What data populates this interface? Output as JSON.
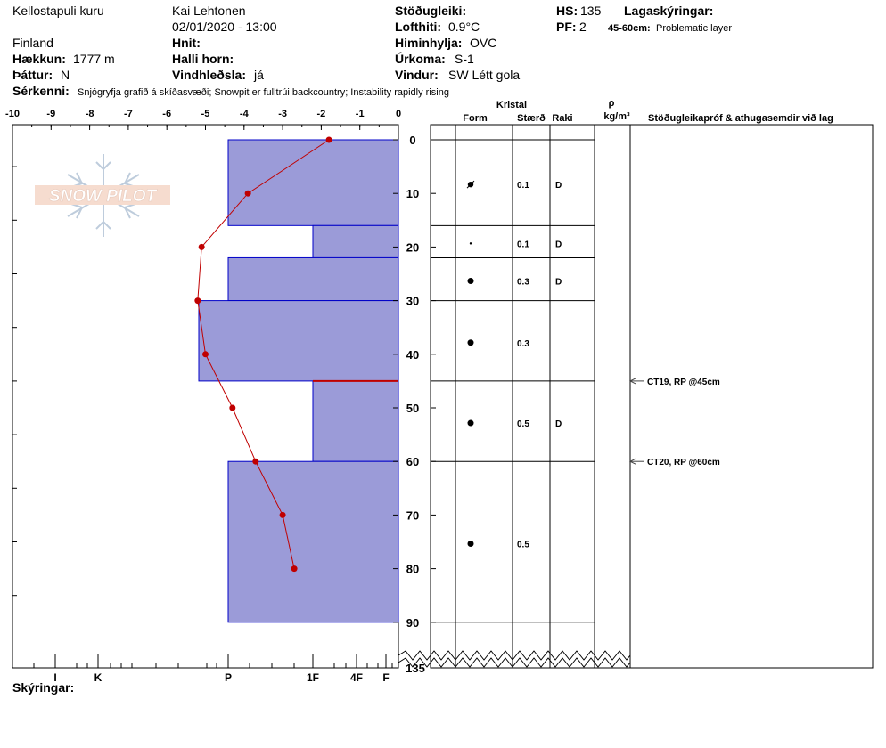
{
  "header": {
    "location": "Kellostapuli kuru",
    "country": "Finland",
    "elevation_label": "Hækkun:",
    "elevation_value": "1777 m",
    "aspect_label": "Þáttur:",
    "aspect_value": "N",
    "observer": "Kai Lehtonen",
    "datetime": "02/01/2020 - 13:00",
    "coords_label": "Hnit:",
    "slope_label": "Halli horn:",
    "wind_loading_label": "Vindhleðsla:",
    "wind_loading_value": "já",
    "stability_label": "Stöðugleiki:",
    "air_temp_label": "Lofthiti:",
    "air_temp_value": "0.9°C",
    "sky_label": "Himinhylja:",
    "sky_value": "OVC",
    "precip_label": "Úrkoma:",
    "precip_value": "S-1",
    "wind_label": "Vindur:",
    "wind_value": "SW  Létt gola",
    "hs_label": "HS:",
    "hs_value": "135",
    "pf_label": "PF:",
    "pf_value": "2",
    "layer_notes_label": "Lagaskýringar:",
    "layer_note_depth": "45-60cm:",
    "layer_note_text": "Problematic layer",
    "features_label": "Sérkenni:",
    "features_text": "Snjógryfja grafið á skíðasvæði;  Snowpit er fulltrúi backcountry;  Instability rapidly rising"
  },
  "columns": {
    "crystal": "Kristal",
    "form": "Form",
    "size": "Stærð",
    "moisture": "Raki",
    "rho": "ρ",
    "density_unit": "kg/m³",
    "tests": "Stöðugleikapróf & athugasemdir við lag"
  },
  "footer": {
    "notes_label": "Skýringar:"
  },
  "logo_text": "SNOW PILOT",
  "colors": {
    "layer_fill": "#9b9bd8",
    "layer_stroke": "#0000c8",
    "temp_line": "#c00000",
    "problem_line": "#c00000"
  },
  "chart_data": {
    "type": "snow_profile",
    "temp_axis": {
      "ticks": [
        "-10",
        "-9",
        "-8",
        "-7",
        "-6",
        "-5",
        "-4",
        "-3",
        "-2",
        "-1",
        "0"
      ],
      "min": -10,
      "max": 0
    },
    "depth_axis": {
      "ticks": [
        "0",
        "10",
        "20",
        "30",
        "40",
        "50",
        "60",
        "70",
        "80",
        "90"
      ],
      "bottom_label": "135",
      "min": 0,
      "max": 135
    },
    "hardness_ticks": [
      "I",
      "K",
      "P",
      "1F",
      "4F",
      "F"
    ],
    "layers": [
      {
        "top": 0,
        "bottom": 16,
        "hardness": "P",
        "form": "graupel",
        "size": "0.1",
        "moisture": "D"
      },
      {
        "top": 16,
        "bottom": 22,
        "hardness": "1F",
        "form": "dot",
        "size": "0.1",
        "moisture": "D"
      },
      {
        "top": 22,
        "bottom": 30,
        "hardness": "P",
        "form": "rounded",
        "size": "0.3",
        "moisture": "D"
      },
      {
        "top": 30,
        "bottom": 45,
        "hardness": "K+",
        "form": "rounded",
        "size": "0.3",
        "moisture": ""
      },
      {
        "top": 45,
        "bottom": 60,
        "hardness": "1F",
        "form": "rounded",
        "size": "0.5",
        "moisture": "D"
      },
      {
        "top": 60,
        "bottom": 90,
        "hardness": "P",
        "form": "rounded",
        "size": "0.5",
        "moisture": ""
      }
    ],
    "problem_layer_depth": 45,
    "temperature_profile": [
      {
        "depth": 0,
        "temp": -1.8
      },
      {
        "depth": 10,
        "temp": -3.9
      },
      {
        "depth": 20,
        "temp": -5.1
      },
      {
        "depth": 30,
        "temp": -5.2
      },
      {
        "depth": 40,
        "temp": -5.0
      },
      {
        "depth": 50,
        "temp": -4.3
      },
      {
        "depth": 60,
        "temp": -3.7
      },
      {
        "depth": 70,
        "temp": -3.0
      },
      {
        "depth": 80,
        "temp": -2.7
      }
    ],
    "tests": [
      {
        "depth": 45,
        "label": "CT19, RP @45cm"
      },
      {
        "depth": 60,
        "label": "CT20, RP @60cm"
      }
    ]
  }
}
